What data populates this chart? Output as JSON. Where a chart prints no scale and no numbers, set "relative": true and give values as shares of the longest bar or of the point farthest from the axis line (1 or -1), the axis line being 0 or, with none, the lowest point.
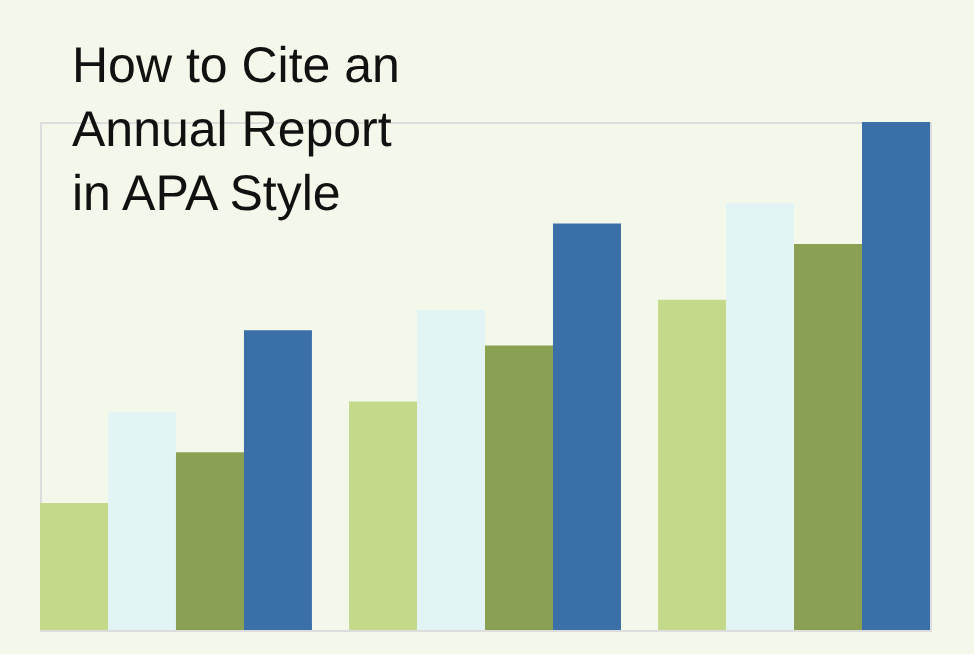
{
  "chart_data": {
    "type": "bar",
    "title": "How to Cite an\nAnnual Report\nin APA Style",
    "relative": true,
    "categories": [
      null,
      null,
      null
    ],
    "legend": false,
    "series": [
      {
        "color": "#c5d98a",
        "values": [
          0.25,
          0.45,
          0.65
        ]
      },
      {
        "color": "#e3f4f4",
        "values": [
          0.43,
          0.63,
          0.84
        ]
      },
      {
        "color": "#8aa052",
        "values": [
          0.35,
          0.56,
          0.76
        ]
      },
      {
        "color": "#3a6fa8",
        "values": [
          0.59,
          0.8,
          1.0
        ]
      }
    ]
  }
}
